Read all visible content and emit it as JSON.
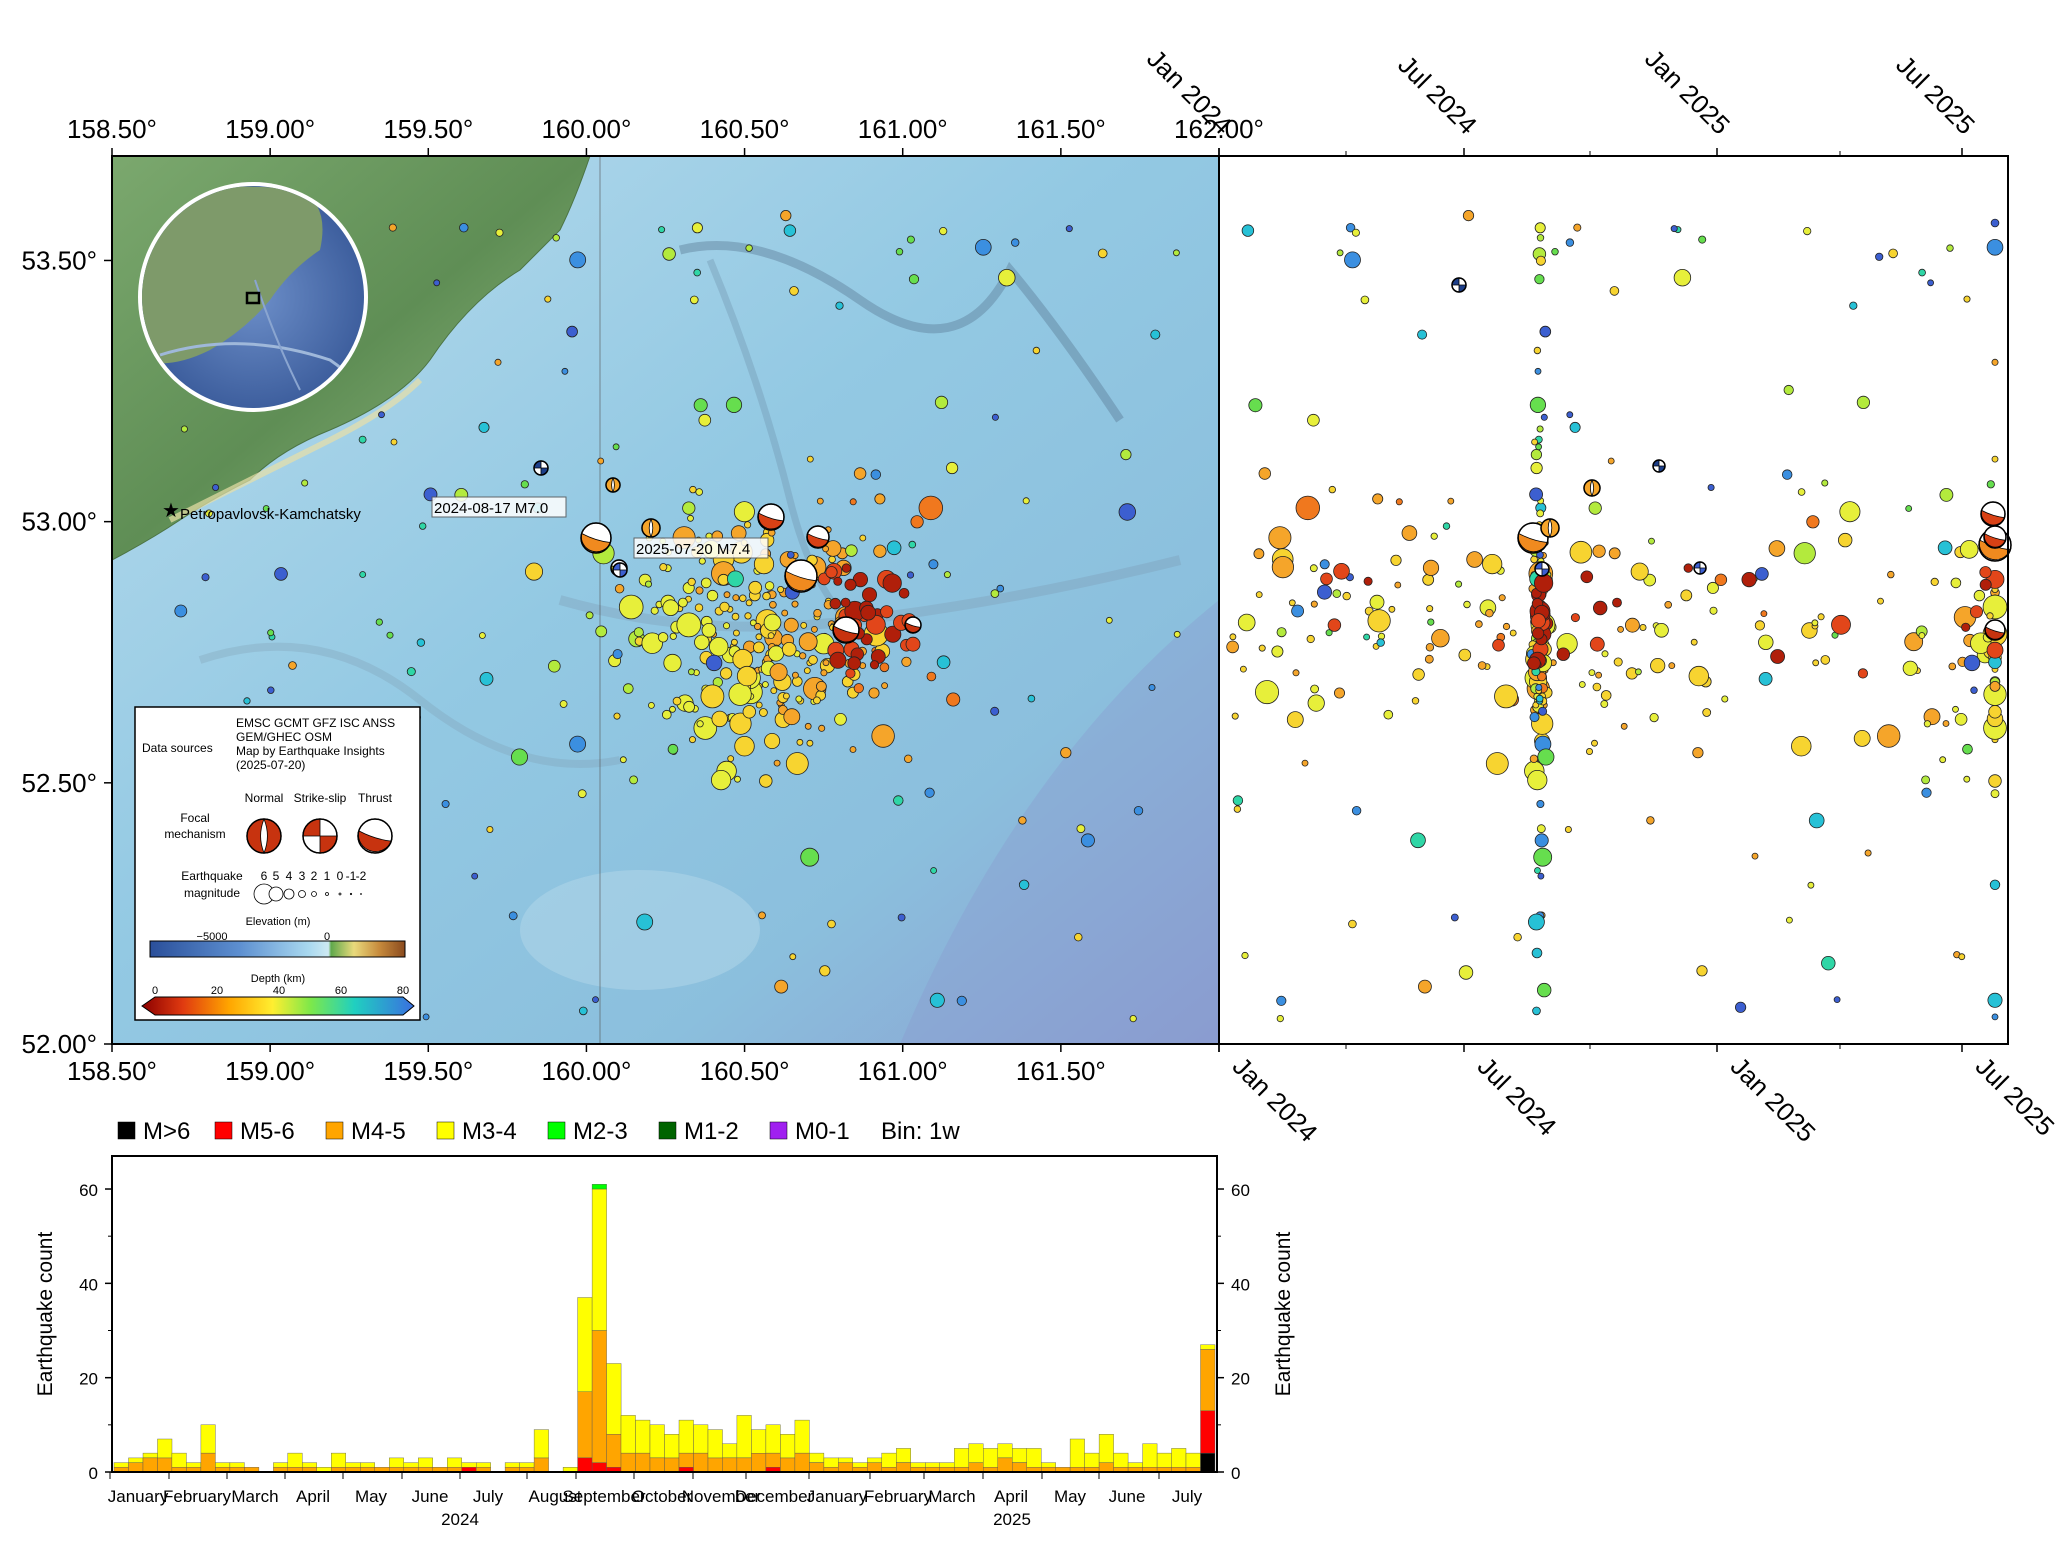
{
  "map": {
    "lon_ticks": [
      "158.50°",
      "159.00°",
      "159.50°",
      "160.00°",
      "160.50°",
      "161.00°",
      "161.50°",
      "162.00°"
    ],
    "lon_tick_values": [
      158.5,
      159.0,
      159.5,
      160.0,
      160.5,
      161.0,
      161.5,
      162.0
    ],
    "lat_ticks": [
      "52.00°",
      "52.50°",
      "53.00°",
      "53.50°"
    ],
    "lat_tick_values": [
      52.0,
      52.5,
      53.0,
      53.5
    ],
    "lon_range": [
      158.5,
      162.0
    ],
    "lat_range": [
      52.0,
      53.7
    ],
    "city_label": "Petropavlovsk-Kamchatsky",
    "event_labels": [
      "2024-08-17 M7.0",
      "2025-07-20 M7.4"
    ],
    "colors": {
      "ocean": "#8fc6e0",
      "deep_ocean": "#7f9ccd",
      "land": "#6f9b62"
    }
  },
  "legend": {
    "data_sources_label": "Data sources",
    "sources_lines": [
      "EMSC GCMT GFZ ISC ANSS",
      "GEM/GHEC OSM",
      "Map by Earthquake Insights",
      "(2025-07-20)"
    ],
    "focal_label_1": "Focal",
    "focal_label_2": "mechanism",
    "mech_types": [
      "Normal",
      "Strike-slip",
      "Thrust"
    ],
    "mag_label_1": "Earthquake",
    "mag_label_2": "magnitude",
    "mag_values": [
      "6",
      "5",
      "4",
      "3",
      "2",
      "1",
      "0",
      "-1",
      "-2"
    ],
    "elevation_title": "Elevation (m)",
    "elevation_ticks": [
      "−5000",
      "0"
    ],
    "depth_title": "Depth (km)",
    "depth_ticks": [
      "0",
      "20",
      "40",
      "60",
      "80"
    ]
  },
  "time_panel": {
    "top_ticks": [
      "Jan 2024",
      "Jul 2024",
      "Jan 2025",
      "Jul 2025"
    ],
    "bottom_ticks": [
      "Jan 2024",
      "Jul 2024",
      "Jan 2025",
      "Jul 2025"
    ]
  },
  "histogram": {
    "legend": [
      {
        "label": "M>6",
        "color": "#000000"
      },
      {
        "label": "M5-6",
        "color": "#ff0000"
      },
      {
        "label": "M4-5",
        "color": "#ffa500"
      },
      {
        "label": "M3-4",
        "color": "#ffff00"
      },
      {
        "label": "M2-3",
        "color": "#00ff00"
      },
      {
        "label": "M1-2",
        "color": "#006400"
      },
      {
        "label": "M0-1",
        "color": "#a020f0"
      }
    ],
    "bin_label": "Bin: 1w",
    "ylabel": "Earthquake count",
    "y_ticks": [
      "0",
      "20",
      "40",
      "60"
    ],
    "month_labels": [
      "January",
      "February",
      "March",
      "April",
      "May",
      "June",
      "July",
      "August",
      "September",
      "October",
      "November",
      "December",
      "January",
      "February",
      "March",
      "April",
      "May",
      "June",
      "July"
    ],
    "year_labels": [
      "2024",
      "2025"
    ]
  },
  "chart_data": {
    "type": "bar",
    "title": "",
    "xlabel": "",
    "ylabel": "Earthquake count",
    "ylim": [
      0,
      67
    ],
    "x_start": "2024-01-01",
    "bin_days": 7,
    "series_order": [
      "M>6",
      "M5-6",
      "M4-5",
      "M3-4",
      "M2-3"
    ],
    "bins": [
      [
        0,
        0,
        1,
        1,
        0
      ],
      [
        0,
        0,
        2,
        1,
        0
      ],
      [
        0,
        0,
        3,
        1,
        0
      ],
      [
        0,
        0,
        3,
        4,
        0
      ],
      [
        0,
        0,
        1,
        3,
        0
      ],
      [
        0,
        0,
        1,
        1,
        0
      ],
      [
        0,
        0,
        4,
        6,
        0
      ],
      [
        0,
        0,
        1,
        1,
        0
      ],
      [
        0,
        0,
        1,
        1,
        0
      ],
      [
        0,
        0,
        1,
        0,
        0
      ],
      [
        0,
        0,
        0,
        0,
        0
      ],
      [
        0,
        0,
        1,
        1,
        0
      ],
      [
        0,
        0,
        1,
        3,
        0
      ],
      [
        0,
        0,
        1,
        1,
        0
      ],
      [
        0,
        0,
        0,
        1,
        0
      ],
      [
        0,
        0,
        1,
        3,
        0
      ],
      [
        0,
        0,
        1,
        1,
        0
      ],
      [
        0,
        0,
        1,
        1,
        0
      ],
      [
        0,
        0,
        1,
        0,
        0
      ],
      [
        0,
        0,
        1,
        2,
        0
      ],
      [
        0,
        0,
        1,
        1,
        0
      ],
      [
        0,
        0,
        1,
        2,
        0
      ],
      [
        0,
        0,
        1,
        0,
        0
      ],
      [
        0,
        0,
        1,
        2,
        0
      ],
      [
        0,
        1,
        0,
        1,
        0
      ],
      [
        0,
        0,
        1,
        1,
        0
      ],
      [
        0,
        0,
        0,
        0,
        0
      ],
      [
        0,
        0,
        1,
        1,
        0
      ],
      [
        0,
        0,
        1,
        1,
        0
      ],
      [
        0,
        0,
        3,
        6,
        0
      ],
      [
        0,
        0,
        0,
        0,
        0
      ],
      [
        0,
        0,
        0,
        1,
        0
      ],
      [
        0,
        3,
        14,
        20,
        0
      ],
      [
        0,
        2,
        28,
        30,
        1
      ],
      [
        0,
        1,
        7,
        15,
        0
      ],
      [
        0,
        0,
        4,
        8,
        0
      ],
      [
        0,
        0,
        4,
        7,
        0
      ],
      [
        0,
        0,
        3,
        7,
        0
      ],
      [
        0,
        0,
        3,
        5,
        0
      ],
      [
        0,
        1,
        3,
        7,
        0
      ],
      [
        0,
        0,
        4,
        6,
        0
      ],
      [
        0,
        0,
        3,
        6,
        0
      ],
      [
        0,
        0,
        3,
        3,
        0
      ],
      [
        0,
        0,
        3,
        9,
        0
      ],
      [
        0,
        0,
        4,
        5,
        0
      ],
      [
        0,
        1,
        3,
        6,
        0
      ],
      [
        0,
        0,
        3,
        5,
        0
      ],
      [
        0,
        0,
        4,
        7,
        0
      ],
      [
        0,
        0,
        2,
        2,
        0
      ],
      [
        0,
        0,
        1,
        2,
        0
      ],
      [
        0,
        0,
        2,
        1,
        0
      ],
      [
        0,
        0,
        1,
        1,
        0
      ],
      [
        0,
        0,
        2,
        1,
        0
      ],
      [
        0,
        0,
        1,
        3,
        0
      ],
      [
        0,
        0,
        2,
        3,
        0
      ],
      [
        0,
        0,
        1,
        1,
        0
      ],
      [
        0,
        0,
        1,
        1,
        0
      ],
      [
        0,
        0,
        1,
        1,
        0
      ],
      [
        0,
        0,
        1,
        4,
        0
      ],
      [
        0,
        0,
        2,
        4,
        0
      ],
      [
        0,
        0,
        1,
        4,
        0
      ],
      [
        0,
        0,
        3,
        3,
        0
      ],
      [
        0,
        0,
        2,
        3,
        0
      ],
      [
        0,
        0,
        1,
        4,
        0
      ],
      [
        0,
        0,
        1,
        1,
        0
      ],
      [
        0,
        0,
        1,
        0,
        0
      ],
      [
        0,
        0,
        1,
        6,
        0
      ],
      [
        0,
        0,
        1,
        3,
        0
      ],
      [
        0,
        0,
        2,
        6,
        0
      ],
      [
        0,
        0,
        1,
        3,
        0
      ],
      [
        0,
        0,
        1,
        1,
        0
      ],
      [
        0,
        0,
        1,
        5,
        0
      ],
      [
        0,
        0,
        1,
        3,
        0
      ],
      [
        0,
        0,
        1,
        4,
        0
      ],
      [
        0,
        0,
        1,
        3,
        0
      ],
      [
        4,
        9,
        13,
        1,
        0
      ]
    ]
  }
}
